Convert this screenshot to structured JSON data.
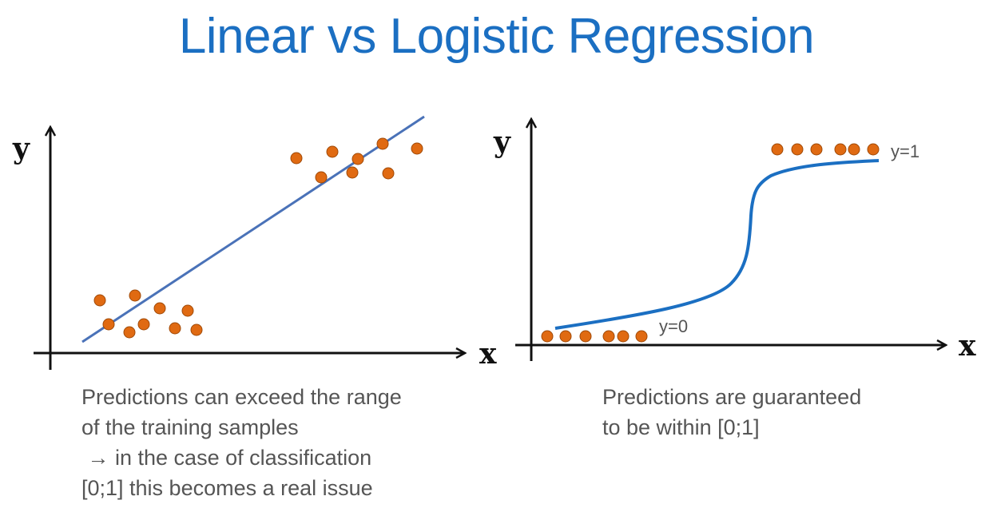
{
  "title": "Linear vs Logistic Regression",
  "left_diagram": {
    "y_axis_label": "y",
    "x_axis_label": "x",
    "caption_lines": [
      "Predictions can exceed the range",
      "of the training samples",
      " → in the case of classification",
      "[0;1] this becomes a real issue"
    ]
  },
  "right_diagram": {
    "y_axis_label": "y",
    "x_axis_label": "x",
    "label_y1": "y=1",
    "label_y0": "y=0",
    "caption_lines": [
      "Predictions are guaranteed",
      "to be within [0;1]"
    ]
  },
  "colors": {
    "title": "#1b6fc2",
    "points": "#e06a12",
    "linear_line": "#4a72b8",
    "sigmoid": "#1b6fc2"
  }
}
